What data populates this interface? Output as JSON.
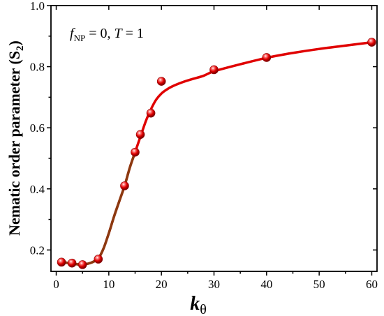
{
  "chart_data": {
    "type": "line",
    "annotation": {
      "f": "f",
      "sub": "NP",
      "eq": " = 0, ",
      "T": "T",
      "eq2": " = 1"
    },
    "ylabel": "Nematic order parameter (S",
    "ylabel_sub": "2",
    "ylabel_end": ")",
    "xlabel": "k",
    "xlabel_sub": "θ",
    "xlim": [
      -1,
      61
    ],
    "ylim": [
      0.13,
      1.0
    ],
    "x_ticks": [
      0,
      10,
      20,
      30,
      40,
      50,
      60
    ],
    "x_tick_labels": [
      "0",
      "10",
      "20",
      "30",
      "40",
      "50",
      "60"
    ],
    "y_ticks": [
      0.2,
      0.4,
      0.6,
      0.8,
      1.0
    ],
    "y_tick_labels": [
      "0.2",
      "0.4",
      "0.6",
      "0.8",
      "1.0"
    ],
    "grid": false,
    "series": [
      {
        "x": [
          1,
          3,
          5,
          8,
          13,
          15,
          16,
          18,
          20,
          30,
          40,
          60
        ],
        "y": [
          0.16,
          0.157,
          0.152,
          0.17,
          0.41,
          0.52,
          0.578,
          0.648,
          0.752,
          0.79,
          0.83,
          0.88
        ],
        "color": "#e00000"
      }
    ],
    "fit_curve": {
      "x": [
        1,
        2,
        3,
        4,
        5,
        6,
        7,
        8,
        9,
        10,
        11,
        12,
        13,
        14,
        15,
        16,
        17,
        18,
        19,
        20,
        21,
        22,
        24,
        26,
        28,
        30,
        35,
        40,
        45,
        50,
        55,
        60
      ],
      "y": [
        0.162,
        0.158,
        0.155,
        0.153,
        0.152,
        0.155,
        0.161,
        0.172,
        0.205,
        0.255,
        0.31,
        0.36,
        0.41,
        0.47,
        0.52,
        0.57,
        0.62,
        0.66,
        0.692,
        0.712,
        0.725,
        0.735,
        0.749,
        0.76,
        0.77,
        0.785,
        0.808,
        0.829,
        0.845,
        0.858,
        0.869,
        0.88
      ],
      "color_main": "#e00000",
      "color_low": "#8b3a10"
    }
  }
}
